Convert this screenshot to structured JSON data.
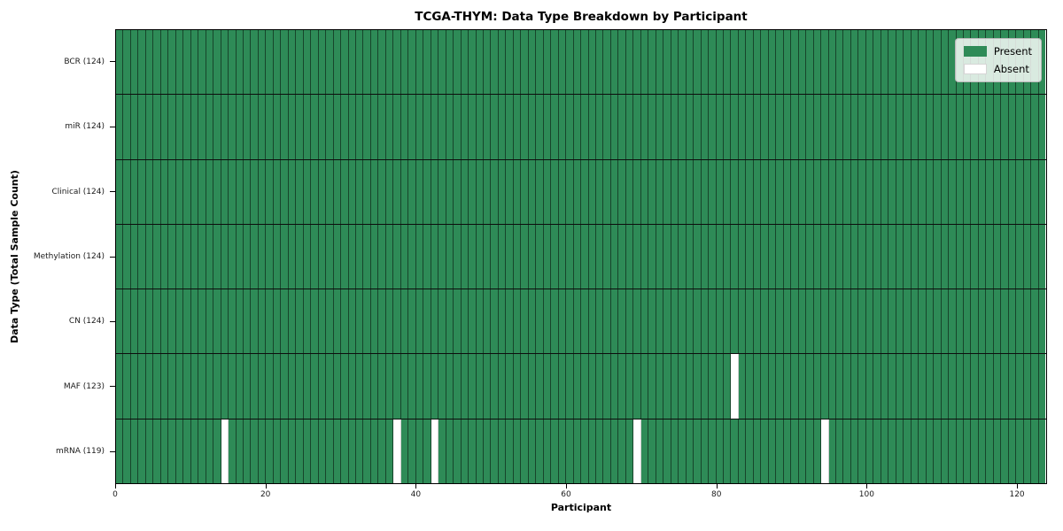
{
  "title": "TCGA-THYM: Data Type Breakdown by Participant",
  "xlabel": "Participant",
  "ylabel": "Data Type (Total Sample Count)",
  "colors": {
    "present": "#2e8b57",
    "absent": "#ffffff",
    "cell_line": "rgba(0,0,0,0.5)",
    "row_separator": "#0d0d0d",
    "axis": "#000000"
  },
  "legend": [
    {
      "label": "Present",
      "color": "#2e8b57",
      "swatch": "present-swatch"
    },
    {
      "label": "Absent",
      "color": "#ffffff",
      "swatch": "absent-swatch"
    }
  ],
  "chart_data": {
    "type": "heatmap",
    "title": "TCGA-THYM: Data Type Breakdown by Participant",
    "xlabel": "Participant",
    "ylabel": "Data Type (Total Sample Count)",
    "n_participants": 124,
    "x_ticks": [
      0,
      20,
      40,
      60,
      80,
      100,
      120
    ],
    "xlim": [
      0,
      124
    ],
    "grid": false,
    "legend_position": "upper right",
    "value_legend": {
      "present": "Present",
      "absent": "Absent"
    },
    "rows": [
      {
        "label": "BCR (124)",
        "data_type": "BCR",
        "present_count": 124,
        "absent_participants": []
      },
      {
        "label": "miR (124)",
        "data_type": "miR",
        "present_count": 124,
        "absent_participants": []
      },
      {
        "label": "Clinical (124)",
        "data_type": "Clinical",
        "present_count": 124,
        "absent_participants": []
      },
      {
        "label": "Methylation (124)",
        "data_type": "Methylation",
        "present_count": 124,
        "absent_participants": []
      },
      {
        "label": "CN (124)",
        "data_type": "CN",
        "present_count": 124,
        "absent_participants": []
      },
      {
        "label": "MAF (123)",
        "data_type": "MAF",
        "present_count": 123,
        "absent_participants": [
          82
        ]
      },
      {
        "label": "mRNA (119)",
        "data_type": "mRNA",
        "present_count": 119,
        "absent_participants": [
          14,
          37,
          42,
          69,
          94
        ]
      }
    ]
  }
}
